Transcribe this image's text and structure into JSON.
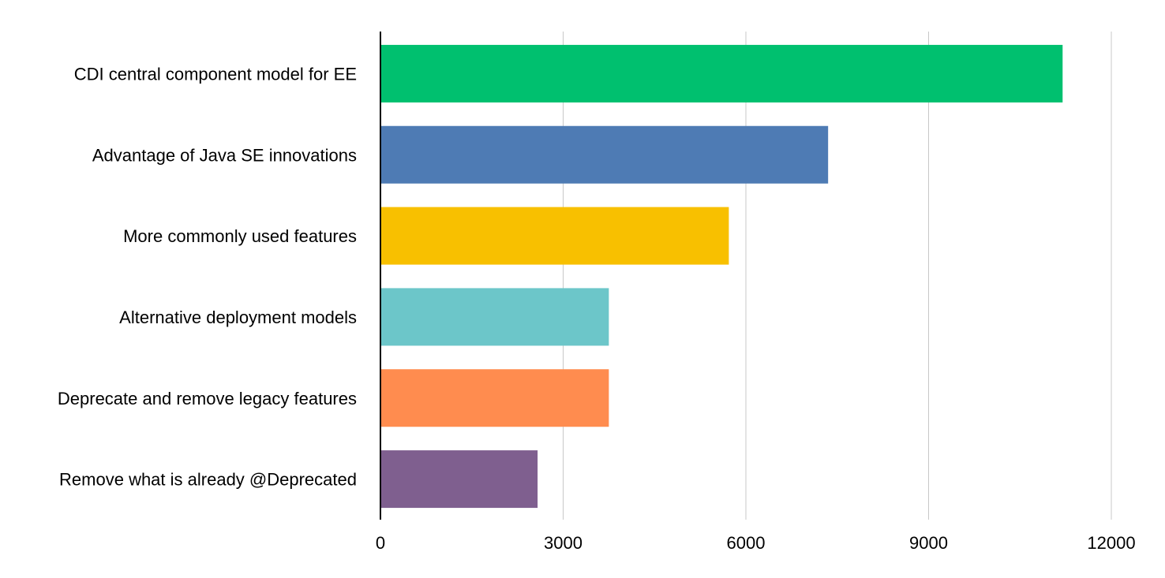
{
  "chart_data": {
    "type": "bar",
    "orientation": "horizontal",
    "title": "",
    "xlabel": "",
    "ylabel": "",
    "xlim": [
      0,
      12000
    ],
    "x_ticks": [
      "0",
      "3000",
      "6000",
      "9000",
      "12000"
    ],
    "grid": "vertical",
    "legend": "none",
    "categories": [
      "CDI central component model for EE",
      "Advantage of Java SE innovations",
      "More commonly used features",
      "Alternative deployment models",
      "Deprecate and remove legacy features",
      "Remove what is already @Deprecated"
    ],
    "values": [
      11200,
      7350,
      5720,
      3750,
      3750,
      2580
    ],
    "colors": [
      "#00c06f",
      "#4e7bb4",
      "#f8c000",
      "#6cc6c9",
      "#ff8c4f",
      "#7f5f8f"
    ]
  }
}
